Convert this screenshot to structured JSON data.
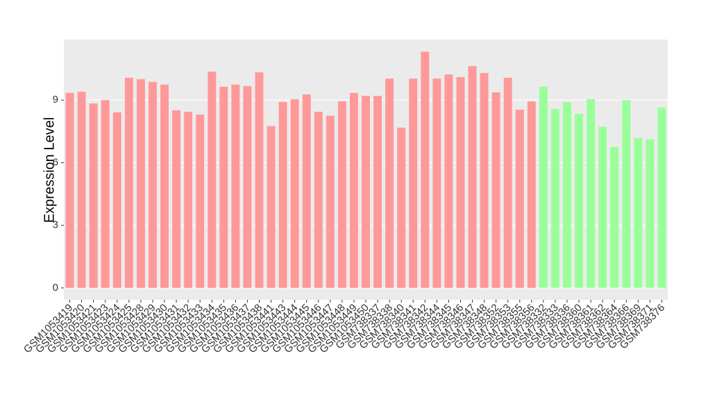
{
  "chart_data": {
    "type": "bar",
    "y_label": "Expression Level",
    "categories": [
      "GSM1053419",
      "GSM1053420",
      "GSM1053421",
      "GSM1053423",
      "GSM1053424",
      "GSM1053425",
      "GSM1053428",
      "GSM1053429",
      "GSM1053430",
      "GSM1053431",
      "GSM1053432",
      "GSM1053433",
      "GSM1053434",
      "GSM1053435",
      "GSM1053436",
      "GSM1053437",
      "GSM1053438",
      "GSM1053441",
      "GSM1053443",
      "GSM1053444",
      "GSM1053445",
      "GSM1053446",
      "GSM1053447",
      "GSM1053448",
      "GSM1053449",
      "GSM1053450",
      "GSM738337",
      "GSM738338",
      "GSM738340",
      "GSM738341",
      "GSM738342",
      "GSM738344",
      "GSM738345",
      "GSM738346",
      "GSM738347",
      "GSM738348",
      "GSM738352",
      "GSM738353",
      "GSM738355",
      "GSM738356",
      "GSM738332",
      "GSM738333",
      "GSM738336",
      "GSM738360",
      "GSM738361",
      "GSM738362",
      "GSM738364",
      "GSM738366",
      "GSM738369",
      "GSM738371",
      "GSM738376"
    ],
    "values": [
      9.34,
      9.4,
      8.84,
      9.0,
      8.41,
      10.07,
      10.0,
      9.87,
      9.74,
      8.51,
      8.44,
      8.31,
      10.36,
      9.64,
      9.74,
      9.67,
      10.33,
      7.75,
      8.91,
      9.04,
      9.27,
      8.44,
      8.25,
      8.94,
      9.34,
      9.2,
      9.2,
      10.03,
      7.68,
      10.03,
      11.32,
      10.03,
      10.23,
      10.1,
      10.63,
      10.3,
      9.37,
      10.07,
      8.54,
      8.94,
      9.64,
      8.58,
      8.91,
      8.34,
      9.04,
      7.72,
      6.75,
      9.0,
      7.19,
      7.12,
      8.64
    ],
    "colors": [
      "#ff9999",
      "#ff9999",
      "#ff9999",
      "#ff9999",
      "#ff9999",
      "#ff9999",
      "#ff9999",
      "#ff9999",
      "#ff9999",
      "#ff9999",
      "#ff9999",
      "#ff9999",
      "#ff9999",
      "#ff9999",
      "#ff9999",
      "#ff9999",
      "#ff9999",
      "#ff9999",
      "#ff9999",
      "#ff9999",
      "#ff9999",
      "#ff9999",
      "#ff9999",
      "#ff9999",
      "#ff9999",
      "#ff9999",
      "#ff9999",
      "#ff9999",
      "#ff9999",
      "#ff9999",
      "#ff9999",
      "#ff9999",
      "#ff9999",
      "#ff9999",
      "#ff9999",
      "#ff9999",
      "#ff9999",
      "#ff9999",
      "#ff9999",
      "#ff9999",
      "#99ff99",
      "#99ff99",
      "#99ff99",
      "#99ff99",
      "#99ff99",
      "#99ff99",
      "#99ff99",
      "#99ff99",
      "#99ff99",
      "#99ff99",
      "#99ff99"
    ],
    "ylim": [
      -0.57,
      11.9
    ],
    "yticks": [
      0,
      3,
      6,
      9
    ],
    "grid": true
  }
}
